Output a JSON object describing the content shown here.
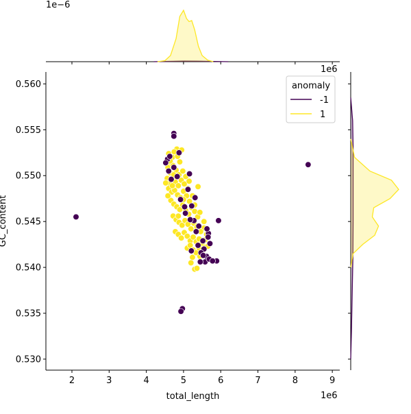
{
  "chart_data": {
    "type": "scatter",
    "kind": "jointplot",
    "xlabel": "total_length",
    "ylabel": "GC_content",
    "x_offset_text": "1e6",
    "y_offset_text_top": "1e6",
    "top_marginal_offset_text": "1e−6",
    "xlim": [
      1.3,
      9.2
    ],
    "ylim": [
      0.5288,
      0.5613
    ],
    "x_ticks": [
      2,
      3,
      4,
      5,
      6,
      7,
      8,
      9
    ],
    "y_ticks": [
      0.53,
      0.535,
      0.54,
      0.545,
      0.55,
      0.555,
      0.56
    ],
    "y_tick_labels": [
      "0.530",
      "0.535",
      "0.540",
      "0.545",
      "0.550",
      "0.555",
      "0.560"
    ],
    "grid": false,
    "legend": {
      "title": "anomaly",
      "placement": "top-right",
      "entries": [
        {
          "label": "-1",
          "color": "#440154"
        },
        {
          "label": "1",
          "color": "#fde725"
        }
      ]
    },
    "series": [
      {
        "name": "-1",
        "color": "#440154",
        "points": [
          [
            2.11,
            0.5455
          ],
          [
            8.35,
            0.5512
          ],
          [
            5.94,
            0.5451
          ],
          [
            4.74,
            0.5546
          ],
          [
            4.74,
            0.5543
          ],
          [
            4.88,
            0.5525
          ],
          [
            4.97,
            0.5355
          ],
          [
            4.93,
            0.5352
          ],
          [
            4.57,
            0.5518
          ],
          [
            4.52,
            0.5514
          ],
          [
            4.63,
            0.5521
          ],
          [
            5.16,
            0.5502
          ],
          [
            4.74,
            0.5509
          ],
          [
            4.83,
            0.5499
          ],
          [
            5.12,
            0.5485
          ],
          [
            5.31,
            0.5476
          ],
          [
            5.22,
            0.5467
          ],
          [
            5.05,
            0.5459
          ],
          [
            5.28,
            0.5451
          ],
          [
            5.67,
            0.5437
          ],
          [
            5.66,
            0.5433
          ],
          [
            5.55,
            0.542
          ],
          [
            5.62,
            0.5412
          ],
          [
            5.47,
            0.5416
          ],
          [
            5.21,
            0.5418
          ],
          [
            5.58,
            0.5406
          ],
          [
            5.69,
            0.5409
          ],
          [
            5.89,
            0.5407
          ],
          [
            5.78,
            0.5407
          ],
          [
            5.45,
            0.5406
          ],
          [
            5.39,
            0.5424
          ],
          [
            5.52,
            0.5429
          ],
          [
            5.63,
            0.5442
          ],
          [
            5.34,
            0.5439
          ],
          [
            5.03,
            0.5466
          ],
          [
            4.92,
            0.5474
          ],
          [
            4.67,
            0.5496
          ],
          [
            4.6,
            0.5505
          ],
          [
            5.18,
            0.5452
          ],
          [
            5.41,
            0.5445
          ],
          [
            5.71,
            0.5426
          ],
          [
            5.53,
            0.5413
          ]
        ]
      },
      {
        "name": "1",
        "color": "#fde725",
        "points": [
          [
            4.6,
            0.5524
          ],
          [
            4.7,
            0.552
          ],
          [
            4.82,
            0.5529
          ],
          [
            4.75,
            0.5526
          ],
          [
            4.66,
            0.5514
          ],
          [
            4.58,
            0.5509
          ],
          [
            4.64,
            0.5503
          ],
          [
            4.72,
            0.5511
          ],
          [
            4.8,
            0.5506
          ],
          [
            4.88,
            0.5501
          ],
          [
            4.56,
            0.5497
          ],
          [
            4.62,
            0.5492
          ],
          [
            4.7,
            0.5496
          ],
          [
            4.78,
            0.5493
          ],
          [
            4.86,
            0.5489
          ],
          [
            4.94,
            0.5495
          ],
          [
            5.02,
            0.5491
          ],
          [
            4.6,
            0.5486
          ],
          [
            4.68,
            0.5482
          ],
          [
            4.76,
            0.5484
          ],
          [
            4.84,
            0.5479
          ],
          [
            4.92,
            0.5476
          ],
          [
            5.0,
            0.5483
          ],
          [
            5.08,
            0.5478
          ],
          [
            5.16,
            0.5472
          ],
          [
            4.66,
            0.5473
          ],
          [
            4.74,
            0.5469
          ],
          [
            4.82,
            0.5466
          ],
          [
            4.9,
            0.5463
          ],
          [
            4.98,
            0.5468
          ],
          [
            5.06,
            0.5462
          ],
          [
            5.14,
            0.5458
          ],
          [
            5.22,
            0.5465
          ],
          [
            5.3,
            0.5461
          ],
          [
            5.39,
            0.5488
          ],
          [
            4.72,
            0.5456
          ],
          [
            4.8,
            0.5452
          ],
          [
            4.88,
            0.5449
          ],
          [
            4.96,
            0.5446
          ],
          [
            5.04,
            0.5451
          ],
          [
            5.12,
            0.5447
          ],
          [
            5.2,
            0.5442
          ],
          [
            5.28,
            0.5448
          ],
          [
            5.36,
            0.5444
          ],
          [
            4.78,
            0.5439
          ],
          [
            4.86,
            0.5436
          ],
          [
            4.94,
            0.5432
          ],
          [
            5.02,
            0.5438
          ],
          [
            5.1,
            0.5434
          ],
          [
            5.18,
            0.5429
          ],
          [
            5.26,
            0.5433
          ],
          [
            5.34,
            0.5428
          ],
          [
            5.42,
            0.5431
          ],
          [
            5.5,
            0.5426
          ],
          [
            5.58,
            0.543
          ],
          [
            5.1,
            0.5421
          ],
          [
            5.18,
            0.5424
          ],
          [
            5.26,
            0.5419
          ],
          [
            5.34,
            0.5416
          ],
          [
            5.42,
            0.5421
          ],
          [
            5.5,
            0.5417
          ],
          [
            5.58,
            0.5422
          ],
          [
            5.3,
            0.5398
          ],
          [
            5.36,
            0.5399
          ],
          [
            5.24,
            0.5411
          ],
          [
            5.62,
            0.5436
          ],
          [
            5.55,
            0.5443
          ],
          [
            5.46,
            0.5439
          ],
          [
            5.38,
            0.5455
          ],
          [
            5.24,
            0.5478
          ],
          [
            5.12,
            0.5486
          ],
          [
            4.98,
            0.5505
          ],
          [
            4.9,
            0.5515
          ],
          [
            4.84,
            0.5521
          ],
          [
            4.64,
            0.5516
          ],
          [
            4.95,
            0.5528
          ],
          [
            5.06,
            0.5499
          ],
          [
            4.74,
            0.5501
          ],
          [
            5.15,
            0.5494
          ],
          [
            5.44,
            0.546
          ],
          [
            5.3,
            0.5468
          ],
          [
            5.0,
            0.5474
          ],
          [
            4.7,
            0.5489
          ],
          [
            4.86,
            0.5456
          ],
          [
            5.55,
            0.545
          ],
          [
            5.65,
            0.5423
          ],
          [
            5.2,
            0.5405
          ],
          [
            5.44,
            0.5412
          ],
          [
            4.58,
            0.5478
          ],
          [
            4.52,
            0.5492
          ]
        ]
      }
    ],
    "marginal_x": {
      "series": [
        {
          "name": "-1",
          "color": "#440154",
          "x": [
            4.2,
            4.6,
            5.0,
            5.4,
            5.8,
            6.2
          ],
          "density": [
            0.0,
            0.006,
            0.012,
            0.01,
            0.005,
            0.0
          ]
        },
        {
          "name": "1",
          "color": "#fde725",
          "x": [
            4.3,
            4.5,
            4.65,
            4.8,
            4.9,
            5.0,
            5.08,
            5.15,
            5.22,
            5.3,
            5.4,
            5.5,
            5.65,
            5.8
          ],
          "density": [
            0.0,
            0.02,
            0.12,
            0.45,
            0.88,
            1.0,
            0.84,
            0.78,
            0.8,
            0.62,
            0.3,
            0.12,
            0.03,
            0.0
          ]
        }
      ]
    },
    "marginal_y": {
      "series": [
        {
          "name": "-1",
          "color": "#440154",
          "y": [
            0.5585,
            0.556,
            0.553,
            0.55,
            0.545,
            0.541,
            0.537,
            0.533,
            0.53
          ],
          "density": [
            0.0,
            0.04,
            0.05,
            0.05,
            0.05,
            0.045,
            0.03,
            0.015,
            0.0
          ]
        },
        {
          "name": "1",
          "color": "#fde725",
          "y": [
            0.554,
            0.552,
            0.5505,
            0.5495,
            0.5485,
            0.5475,
            0.5465,
            0.5455,
            0.5445,
            0.5435,
            0.5425,
            0.5415,
            0.54
          ],
          "density": [
            0.0,
            0.08,
            0.4,
            0.85,
            1.0,
            0.82,
            0.48,
            0.45,
            0.58,
            0.5,
            0.25,
            0.05,
            0.0
          ]
        }
      ]
    }
  }
}
